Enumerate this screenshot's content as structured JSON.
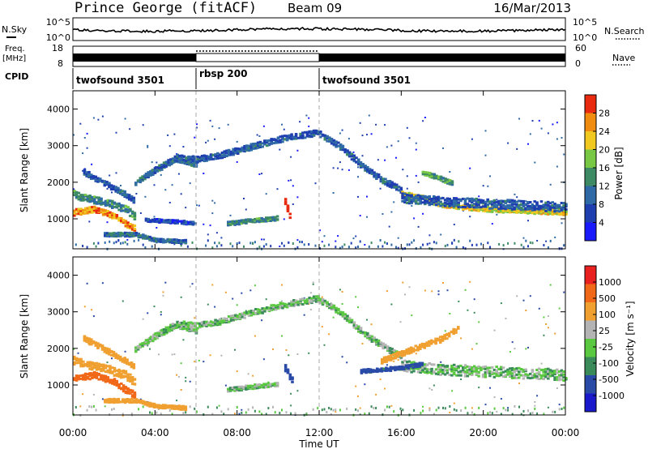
{
  "header": {
    "station": "Prince George (fitACF)",
    "beam": "Beam 09",
    "date": "16/Mar/2013"
  },
  "noise_panel": {
    "left_label": "N.Sky",
    "left_ticks": [
      "10^5",
      "10^0"
    ],
    "right_ticks": [
      "10^5",
      "10^0"
    ],
    "right_label": "N.Search"
  },
  "freq_panel": {
    "left_label_1": "Freq.",
    "left_label_2": "[MHz]",
    "left_ticks": [
      "18",
      "8"
    ],
    "right_ticks": [
      "60",
      "0"
    ],
    "right_label": "Nave"
  },
  "cpid": {
    "label": "CPID",
    "segments": [
      {
        "name": "twofsound 3501",
        "start_hour": 0,
        "end_hour": 6
      },
      {
        "name": "rbsp 200",
        "start_hour": 6,
        "end_hour": 12
      },
      {
        "name": "twofsound 3501",
        "start_hour": 12,
        "end_hour": 24
      }
    ]
  },
  "chart_data": [
    {
      "type": "heatmap",
      "quantity": "Power",
      "ylabel": "Slant Range [km]",
      "yticks": [
        "1000",
        "2000",
        "3000",
        "4000"
      ],
      "ylim": [
        180,
        4500
      ],
      "xlim_hours": [
        0,
        24
      ],
      "colorbar": {
        "label": "Power [dB]",
        "ticks": [
          "4",
          "8",
          "12",
          "16",
          "20",
          "24",
          "28"
        ],
        "range": [
          0,
          30
        ]
      },
      "bands": [
        {
          "t": [
            0,
            1,
            2,
            2.5,
            3
          ],
          "r": [
            1200,
            1300,
            1100,
            900,
            750
          ],
          "w": 170,
          "v": 24
        },
        {
          "t": [
            0,
            0.5,
            1.5,
            2.5,
            3
          ],
          "r": [
            1700,
            1600,
            1500,
            1300,
            1100
          ],
          "w": 200,
          "v": 12
        },
        {
          "t": [
            0.5,
            1.5,
            2.5,
            3
          ],
          "r": [
            2300,
            2000,
            1700,
            1500
          ],
          "w": 150,
          "v": 8
        },
        {
          "t": [
            3,
            4,
            5,
            6
          ],
          "r": [
            2000,
            2400,
            2650,
            2500
          ],
          "w": 120,
          "v": 10
        },
        {
          "t": [
            3.5,
            5,
            6,
            7,
            8,
            9,
            10,
            11,
            12
          ],
          "r": [
            2200,
            2700,
            2650,
            2750,
            2900,
            3050,
            3200,
            3300,
            3400
          ],
          "w": 160,
          "v": 8
        },
        {
          "t": [
            12,
            13,
            14,
            15,
            16
          ],
          "r": [
            3350,
            3000,
            2500,
            2100,
            1800
          ],
          "w": 160,
          "v": 8
        },
        {
          "t": [
            16,
            17,
            18,
            20,
            22,
            24
          ],
          "r": [
            1700,
            1600,
            1400,
            1300,
            1250,
            1200
          ],
          "w": 140,
          "v": 20
        },
        {
          "t": [
            16,
            18,
            20,
            22,
            24
          ],
          "r": [
            1600,
            1500,
            1450,
            1400,
            1350
          ],
          "w": 260,
          "v": 8
        },
        {
          "t": [
            1.5,
            3,
            4,
            5.5
          ],
          "r": [
            600,
            600,
            450,
            400
          ],
          "w": 100,
          "v": 10
        },
        {
          "t": [
            3.5,
            5,
            6
          ],
          "r": [
            1000,
            950,
            900
          ],
          "w": 90,
          "v": 6
        },
        {
          "t": [
            7.5,
            9,
            10
          ],
          "r": [
            900,
            1000,
            1050
          ],
          "w": 110,
          "v": 12
        },
        {
          "t": [
            10.3,
            10.6
          ],
          "r": [
            1500,
            1000
          ],
          "w": 160,
          "v": 30
        },
        {
          "t": [
            17,
            18,
            18.5
          ],
          "r": [
            2300,
            2100,
            2000
          ],
          "w": 120,
          "v": 14
        }
      ]
    },
    {
      "type": "heatmap",
      "quantity": "Velocity",
      "ylabel": "Slant Range [km]",
      "yticks": [
        "1000",
        "2000",
        "3000",
        "4000"
      ],
      "ylim": [
        180,
        4500
      ],
      "xlim_hours": [
        0,
        24
      ],
      "colorbar": {
        "label": "Velocity [m s⁻¹]",
        "ticks": [
          "1000",
          "500",
          "100",
          "25",
          "-25",
          "-100",
          "-500",
          "-1000"
        ],
        "range": [
          -1200,
          1200
        ]
      },
      "bands": [
        {
          "t": [
            0,
            1,
            2,
            2.5,
            3
          ],
          "r": [
            1200,
            1300,
            1100,
            900,
            750
          ],
          "w": 170,
          "v": -600
        },
        {
          "t": [
            0,
            0.5,
            1.5,
            2.5,
            3
          ],
          "r": [
            1700,
            1600,
            1500,
            1300,
            1100
          ],
          "w": 220,
          "v": -400
        },
        {
          "t": [
            0.5,
            1.5,
            2.5,
            3
          ],
          "r": [
            2300,
            2000,
            1700,
            1500
          ],
          "w": 150,
          "v": -200
        },
        {
          "t": [
            3,
            4,
            5,
            6
          ],
          "r": [
            2000,
            2400,
            2650,
            2500
          ],
          "w": 120,
          "v": 0
        },
        {
          "t": [
            3.5,
            5,
            6,
            7,
            8,
            9,
            10,
            11,
            12
          ],
          "r": [
            2200,
            2700,
            2650,
            2750,
            2900,
            3050,
            3200,
            3300,
            3400
          ],
          "w": 160,
          "v": 0
        },
        {
          "t": [
            12,
            13,
            14,
            15,
            16
          ],
          "r": [
            3350,
            3000,
            2500,
            2100,
            1800
          ],
          "w": 160,
          "v": 0
        },
        {
          "t": [
            16,
            18,
            20,
            22,
            24
          ],
          "r": [
            1550,
            1450,
            1400,
            1350,
            1300
          ],
          "w": 300,
          "v": 0
        },
        {
          "t": [
            1.5,
            3,
            4,
            5.5
          ],
          "r": [
            600,
            600,
            450,
            400
          ],
          "w": 100,
          "v": -400
        },
        {
          "t": [
            7.5,
            9,
            10
          ],
          "r": [
            900,
            1000,
            1050
          ],
          "w": 110,
          "v": 0
        },
        {
          "t": [
            10.3,
            10.7
          ],
          "r": [
            1500,
            1100
          ],
          "w": 180,
          "v": 300
        },
        {
          "t": [
            15,
            16.5,
            18,
            18.8
          ],
          "r": [
            1700,
            2000,
            2300,
            2600
          ],
          "w": 150,
          "v": -400
        },
        {
          "t": [
            14,
            16,
            17
          ],
          "r": [
            1400,
            1500,
            1600
          ],
          "w": 100,
          "v": 150
        }
      ]
    }
  ],
  "xaxis": {
    "ticks": [
      "00:00",
      "04:00",
      "08:00",
      "12:00",
      "16:00",
      "20:00",
      "00:00"
    ],
    "label": "Time UT"
  },
  "colors": {
    "power_scale": [
      "#1a1aff",
      "#1f3fb0",
      "#2f6aa6",
      "#3d8a64",
      "#78c846",
      "#f0c820",
      "#f08c10",
      "#e82a10"
    ],
    "velocity_scale": [
      "#1a1acc",
      "#2a4aa8",
      "#3a8a5a",
      "#5ac840",
      "#b4b4b4",
      "#f0a030",
      "#f06818",
      "#e82020"
    ]
  }
}
